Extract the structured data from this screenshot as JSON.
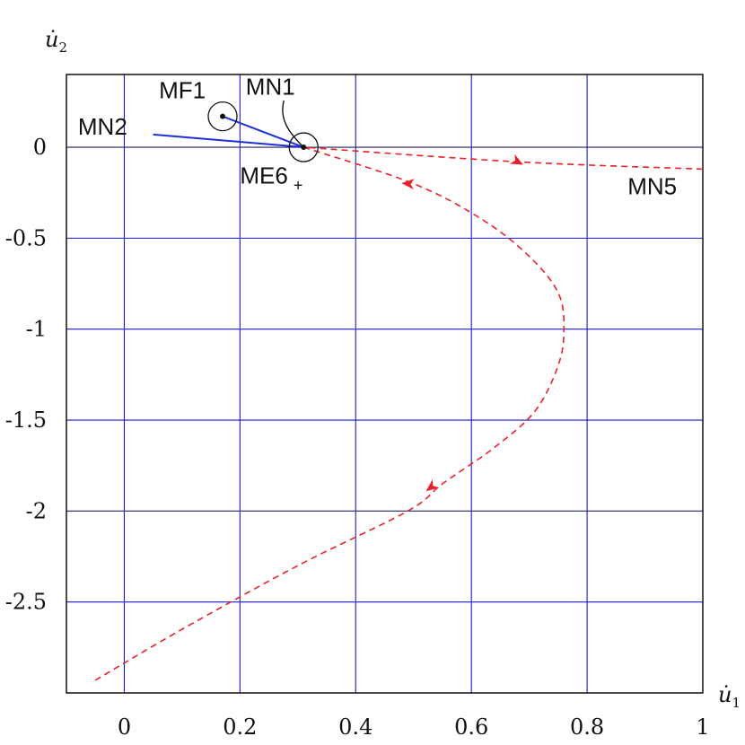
{
  "chart_data": {
    "type": "line",
    "xlabel": "u̇",
    "xlabel_sub": "1",
    "ylabel": "u̇",
    "ylabel_sub": "2",
    "xlim": [
      -0.1,
      1.0
    ],
    "ylim": [
      -3.0,
      0.4
    ],
    "x_ticks": [
      0,
      0.2,
      0.4,
      0.6,
      0.8,
      1
    ],
    "x_tick_labels": [
      "0",
      "0.2",
      "0.4",
      "0.6",
      "0.8",
      "1"
    ],
    "y_ticks": [
      0,
      -0.5,
      -1,
      -1.5,
      -2,
      -2.5
    ],
    "y_tick_labels": [
      "0",
      "-0.5",
      "-1",
      "-1.5",
      "-2",
      "-2.5"
    ],
    "grid": true,
    "colors": {
      "grid": "#1a1acc",
      "solid": "#1f2fd6",
      "dashed": "#e8222c",
      "axis": "#000000"
    },
    "series": [
      {
        "style": "solid-blue",
        "x": [
          0.17,
          0.31
        ],
        "y": [
          0.17,
          0.0
        ]
      },
      {
        "style": "solid-blue",
        "x": [
          0.05,
          0.31
        ],
        "y": [
          0.07,
          0.0
        ]
      },
      {
        "style": "dashed-red",
        "x": [
          0.31,
          0.5,
          0.62,
          0.7,
          0.75,
          0.76,
          0.75,
          0.71,
          0.64,
          0.55,
          0.49,
          0.3,
          0.1,
          -0.05
        ],
        "y": [
          0.0,
          -0.2,
          -0.4,
          -0.6,
          -0.8,
          -1.0,
          -1.2,
          -1.45,
          -1.65,
          -1.85,
          -2.0,
          -2.3,
          -2.65,
          -2.93
        ]
      },
      {
        "style": "dashed-red",
        "x": [
          1.0,
          0.68,
          0.31
        ],
        "y": [
          -0.12,
          -0.08,
          0.0
        ]
      }
    ],
    "arrows": [
      {
        "x": 0.49,
        "y": -0.2,
        "dir": "out"
      },
      {
        "x": 0.53,
        "y": -1.87,
        "dir": "out"
      },
      {
        "x": 0.68,
        "y": -0.08,
        "dir": "in"
      }
    ],
    "points": [
      {
        "x": 0.17,
        "y": 0.17,
        "circle": true
      },
      {
        "x": 0.31,
        "y": 0.0,
        "circle": true
      }
    ],
    "annotations": [
      {
        "text": "MF1",
        "x": 0.06,
        "y": 0.27
      },
      {
        "text": "MN1",
        "x": 0.21,
        "y": 0.29
      },
      {
        "text": "MN2",
        "x": -0.08,
        "y": 0.07
      },
      {
        "text": "ME6",
        "sub": "+",
        "x": 0.2,
        "y": -0.2
      },
      {
        "text": "MN5",
        "x": 0.87,
        "y": -0.26
      }
    ]
  }
}
